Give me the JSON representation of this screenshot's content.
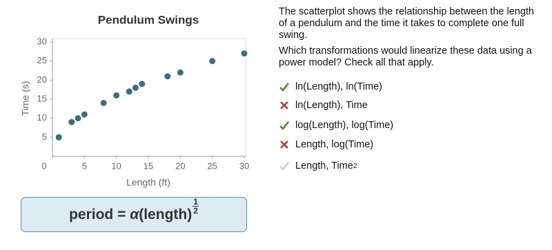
{
  "chart_data": {
    "type": "scatter",
    "title": "Pendulum Swings",
    "x_label": "Length (ft)",
    "y_label": "Time (s)",
    "x": [
      1,
      3,
      4,
      5,
      8,
      10,
      12,
      13,
      14,
      18,
      20,
      25,
      30
    ],
    "values": [
      5,
      9,
      10,
      11,
      14,
      16,
      17,
      18,
      19,
      21,
      22,
      25,
      27
    ],
    "color": "#3b6f7d",
    "xlim": [
      0,
      30
    ],
    "xticks": [
      0,
      5,
      10,
      15,
      20,
      25,
      30
    ],
    "ylim": [
      0,
      30
    ],
    "yticks": [
      5,
      10,
      15,
      20,
      25,
      30
    ],
    "grid": false
  },
  "formula": {
    "lhs": "period = ",
    "coefficient": "α",
    "base": "(length)",
    "exponent_numerator": 1,
    "exponent_denominator": 2
  },
  "question": {
    "paragraphs": [
      "The scatterplot shows the relationship between the length of a pendulum and the time it takes to complete one full swing.",
      "Which transformations would linearize these data using a power model? Check all that apply."
    ],
    "options": [
      {
        "text": "ln(Length), ln(Time)",
        "status": "correct"
      },
      {
        "text": "ln(Length), Time",
        "status": "incorrect"
      },
      {
        "text": "log(Length), log(Time)",
        "status": "correct"
      },
      {
        "text": "Length, log(Time)",
        "status": "incorrect"
      },
      {
        "text": "Length, Time",
        "superscript": 2,
        "status": "unselected"
      }
    ]
  }
}
